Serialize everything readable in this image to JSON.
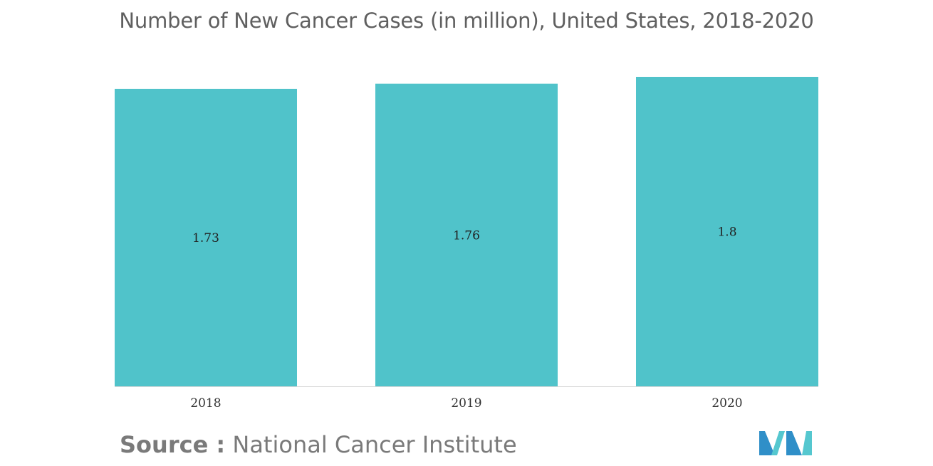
{
  "chart_data": {
    "type": "bar",
    "title": "Number of New Cancer Cases (in million), United States, 2018-2020",
    "categories": [
      "2018",
      "2019",
      "2020"
    ],
    "values": [
      1.73,
      1.76,
      1.8
    ],
    "data_labels": [
      "1.73",
      "1.76",
      "1.8"
    ],
    "xlabel": "",
    "ylabel": "",
    "ylim": [
      0,
      1.8
    ],
    "grid": false,
    "legend": "none",
    "colors": {
      "bar": "#50c3ca",
      "baseline": "#d8d8d8",
      "title": "#5f5f5f",
      "source": "#7a7a7a"
    }
  },
  "source": {
    "prefix": "Source :",
    "text": "National Cancer Institute"
  },
  "logo": {
    "icon": "brand-logo-icon",
    "colors": [
      "#2f8fc8",
      "#55c7cf"
    ]
  }
}
